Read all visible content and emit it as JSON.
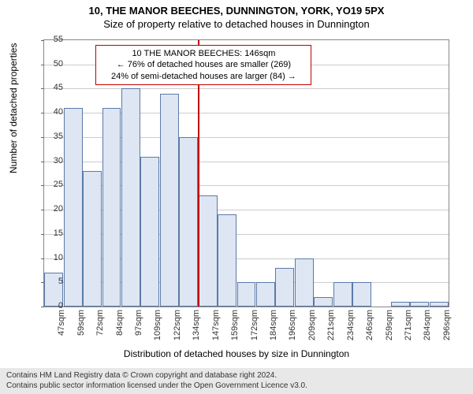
{
  "title": "10, THE MANOR BEECHES, DUNNINGTON, YORK, YO19 5PX",
  "subtitle": "Size of property relative to detached houses in Dunnington",
  "chart": {
    "type": "histogram",
    "xlabel": "Distribution of detached houses by size in Dunnington",
    "ylabel": "Number of detached properties",
    "ylim": [
      0,
      55
    ],
    "ytick_step": 5,
    "bar_fill": "#dde6f2",
    "bar_stroke": "#5b7aa8",
    "grid_color": "#cccccc",
    "border_color": "#888888",
    "background": "#ffffff",
    "categories": [
      "47sqm",
      "59sqm",
      "72sqm",
      "84sqm",
      "97sqm",
      "109sqm",
      "122sqm",
      "134sqm",
      "147sqm",
      "159sqm",
      "172sqm",
      "184sqm",
      "196sqm",
      "209sqm",
      "221sqm",
      "234sqm",
      "246sqm",
      "259sqm",
      "271sqm",
      "284sqm",
      "296sqm"
    ],
    "values": [
      7,
      41,
      28,
      41,
      45,
      31,
      44,
      35,
      23,
      19,
      5,
      5,
      8,
      10,
      2,
      5,
      5,
      0,
      1,
      1,
      1
    ],
    "marker": {
      "index_after": 8,
      "color": "#c00000"
    },
    "annotation": {
      "lines": [
        "10 THE MANOR BEECHES: 146sqm",
        "← 76% of detached houses are smaller (269)",
        "24% of semi-detached houses are larger (84) →"
      ],
      "border_color": "#c00000"
    }
  },
  "footer": {
    "line1": "Contains HM Land Registry data © Crown copyright and database right 2024.",
    "line2": "Contains public sector information licensed under the Open Government Licence v3.0."
  }
}
